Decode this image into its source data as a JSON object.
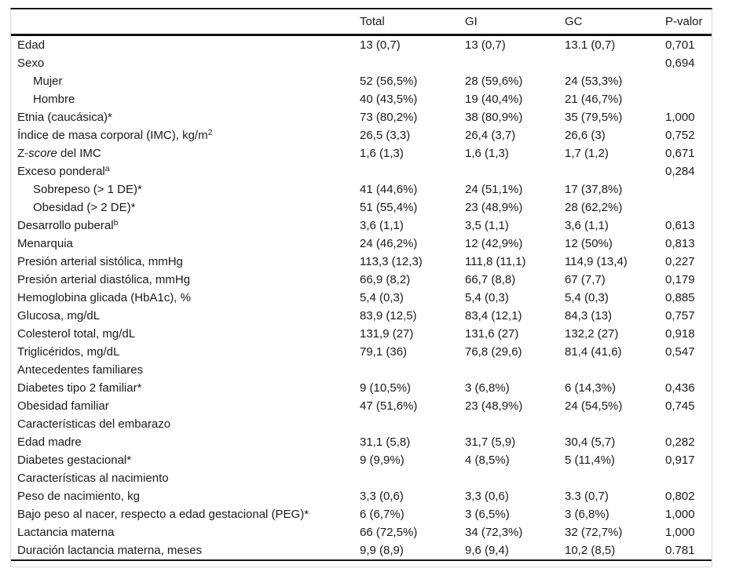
{
  "colors": {
    "rule_dark": "#141414",
    "outer_border_gray": "#d6d6d6",
    "text": "#1a1a1a",
    "background": "#ffffff"
  },
  "table": {
    "columns": [
      "",
      "Total",
      "GI",
      "GC",
      "P-valor"
    ],
    "rows": [
      {
        "label": "Edad",
        "indent": 0,
        "values": [
          "13 (0,7)",
          "13 (0,7)",
          "13.1 (0,7)",
          "0,701"
        ]
      },
      {
        "label": "Sexo",
        "indent": 0,
        "values": [
          "",
          "",
          "",
          "0,694"
        ]
      },
      {
        "label": "Mujer",
        "indent": 1,
        "values": [
          "52 (56,5%)",
          "28 (59,6%)",
          "24 (53,3%)",
          ""
        ]
      },
      {
        "label": "Hombre",
        "indent": 1,
        "values": [
          "40 (43,5%)",
          "19 (40,4%)",
          "21 (46,7%)",
          ""
        ]
      },
      {
        "label": "Etnia (caucásica)*",
        "indent": 0,
        "values": [
          "73 (80,2%)",
          "38 (80,9%)",
          "35 (79,5%)",
          "1,000"
        ]
      },
      {
        "parts": [
          {
            "t": "Índice de masa corporal (IMC), kg/m"
          },
          {
            "t": "2",
            "s": "sup"
          }
        ],
        "indent": 0,
        "values": [
          "26,5 (3,3)",
          "26,4 (3,7)",
          "26,6 (3)",
          "0,752"
        ]
      },
      {
        "parts": [
          {
            "t": "Z-"
          },
          {
            "t": "score",
            "s": "i"
          },
          {
            "t": " del IMC"
          }
        ],
        "indent": 0,
        "values": [
          "1,6 (1,3)",
          "1,6 (1,3)",
          "1,7 (1,2)",
          "0,671"
        ]
      },
      {
        "parts": [
          {
            "t": "Exceso ponderal"
          },
          {
            "t": "a",
            "s": "sup"
          }
        ],
        "indent": 0,
        "values": [
          "",
          "",
          "",
          "0,284"
        ]
      },
      {
        "label": "Sobrepeso (> 1 DE)*",
        "indent": 1,
        "values": [
          "41 (44,6%)",
          "24 (51,1%)",
          "17 (37,8%)",
          ""
        ]
      },
      {
        "label": "Obesidad (> 2 DE)*",
        "indent": 1,
        "values": [
          "51 (55,4%)",
          "23 (48,9%)",
          "28 (62,2%)",
          ""
        ]
      },
      {
        "parts": [
          {
            "t": "Desarrollo puberal"
          },
          {
            "t": "b",
            "s": "sup"
          }
        ],
        "indent": 0,
        "values": [
          "3,6 (1,1)",
          "3,5 (1,1)",
          "3,6 (1,1)",
          "0,613"
        ]
      },
      {
        "label": "Menarquia",
        "indent": 0,
        "values": [
          "24 (46,2%)",
          "12 (42,9%)",
          "12 (50%)",
          "0,813"
        ]
      },
      {
        "label": "Presión arterial sistólica, mmHg",
        "indent": 0,
        "values": [
          "113,3 (12,3)",
          "111,8 (11,1)",
          "114,9 (13,4)",
          "0,227"
        ]
      },
      {
        "label": "Presión arterial diastólica, mmHg",
        "indent": 0,
        "values": [
          "66,9 (8,2)",
          "66,7 (8,8)",
          "67 (7,7)",
          "0,179"
        ]
      },
      {
        "label": "Hemoglobina glicada (HbA1c), %",
        "indent": 0,
        "values": [
          "5,4 (0,3)",
          "5,4 (0,3)",
          "5,4 (0,3)",
          "0,885"
        ]
      },
      {
        "label": "Glucosa, mg/dL",
        "indent": 0,
        "values": [
          "83,9 (12,5)",
          "83,4 (12,1)",
          "84,3 (13)",
          "0,757"
        ]
      },
      {
        "label": "Colesterol total, mg/dL",
        "indent": 0,
        "values": [
          "131,9 (27)",
          "131,6 (27)",
          "132,2 (27)",
          "0,918"
        ]
      },
      {
        "label": "Triglicéridos, mg/dL",
        "indent": 0,
        "values": [
          "79,1 (36)",
          "76,8 (29,6)",
          "81,4 (41,6)",
          "0,547"
        ]
      },
      {
        "label": "Antecedentes familiares",
        "indent": 0,
        "values": [
          "",
          "",
          "",
          ""
        ]
      },
      {
        "label": "Diabetes tipo 2 familiar*",
        "indent": 0,
        "values": [
          "9 (10,5%)",
          "3 (6,8%)",
          "6 (14,3%)",
          "0,436"
        ]
      },
      {
        "label": "Obesidad familiar",
        "indent": 0,
        "values": [
          "47 (51,6%)",
          "23 (48,9%)",
          "24 (54,5%)",
          "0,745"
        ]
      },
      {
        "label": "Características del embarazo",
        "indent": 0,
        "values": [
          "",
          "",
          "",
          ""
        ]
      },
      {
        "label": "Edad madre",
        "indent": 0,
        "values": [
          "31,1 (5,8)",
          "31,7 (5,9)",
          "30,4 (5,7)",
          "0,282"
        ]
      },
      {
        "label": "Diabetes gestacional*",
        "indent": 0,
        "values": [
          "9 (9,9%)",
          "4 (8,5%)",
          "5 (11,4%)",
          "0,917"
        ]
      },
      {
        "label": "Características al nacimiento",
        "indent": 0,
        "values": [
          "",
          "",
          "",
          ""
        ]
      },
      {
        "label": "Peso de nacimiento, kg",
        "indent": 0,
        "values": [
          "3,3 (0,6)",
          "3,3 (0,6)",
          "3.3 (0,7)",
          "0,802"
        ]
      },
      {
        "label": "Bajo peso al nacer, respecto a edad gestacional (PEG)*",
        "indent": 0,
        "values": [
          "6 (6,7%)",
          "3 (6,5%)",
          "3 (6,8%)",
          "1,000"
        ]
      },
      {
        "label": "Lactancia materna",
        "indent": 0,
        "values": [
          "66 (72,5%)",
          "34 (72,3%)",
          "32 (72,7%)",
          "1,000"
        ]
      },
      {
        "label": "Duración lactancia materna, meses",
        "indent": 0,
        "values": [
          "9,9 (8,9)",
          "9,6 (9,4)",
          "10,2 (8,5)",
          "0.781"
        ]
      }
    ]
  }
}
